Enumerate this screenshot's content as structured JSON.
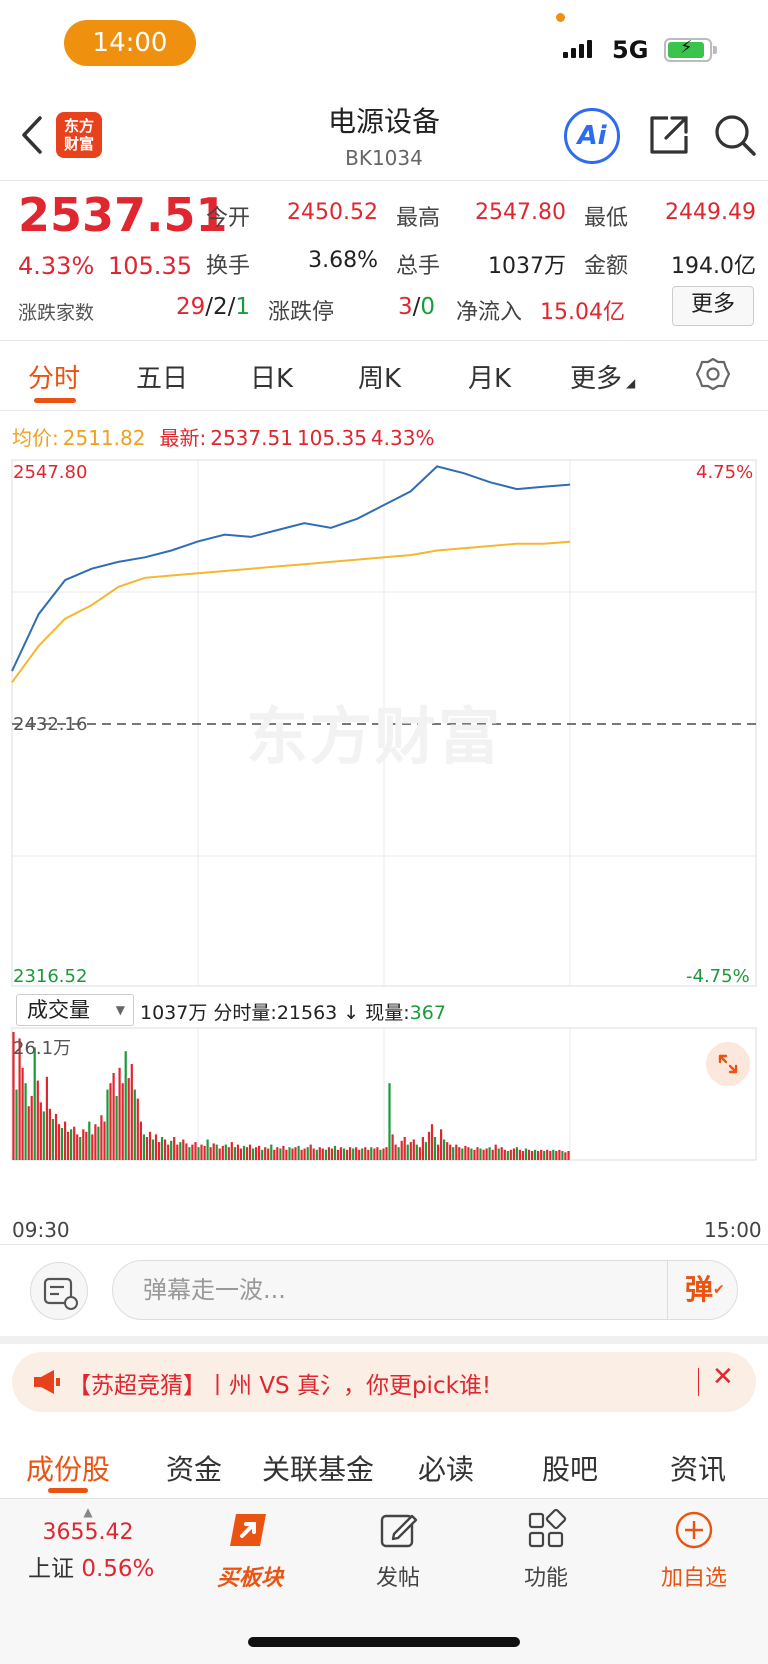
{
  "status_bar": {
    "time": "14:00",
    "network": "5G"
  },
  "header": {
    "title": "电源设备",
    "code": "BK1034",
    "logo_text": "东方财富",
    "ai_label": "Ai"
  },
  "quote": {
    "price": "2537.51",
    "change_pct": "4.33%",
    "change": "105.35",
    "open_label": "今开",
    "open": "2450.52",
    "high_label": "最高",
    "high": "2547.80",
    "low_label": "最低",
    "low": "2449.49",
    "turnover_label": "换手",
    "turnover": "3.68%",
    "volume_label": "总手",
    "volume": "1037万",
    "amount_label": "金额",
    "amount": "194.0亿",
    "adv_dec_label": "涨跌家数",
    "adv": "29",
    "flat": "2",
    "dec": "1",
    "limit_label": "涨跌停",
    "limit_up": "3",
    "limit_down": "0",
    "net_inflow_label": "净流入",
    "net_inflow": "15.04亿",
    "more_label": "更多"
  },
  "chart_tabs": [
    "分时",
    "五日",
    "日K",
    "周K",
    "月K",
    "更多"
  ],
  "info_row": {
    "avg_label": "均价:",
    "avg": "2511.82",
    "latest_label": "最新:",
    "latest": "2537.51",
    "latest_change": "105.35",
    "latest_pct": "4.33%"
  },
  "chart_data": {
    "type": "line",
    "y_max": "2547.80",
    "y_mid": "2432.16",
    "y_min": "2316.52",
    "pct_max": "4.75%",
    "pct_min": "-4.75%",
    "x_start": "09:30",
    "x_end": "15:00",
    "ylim": [
      2316.52,
      2547.8
    ],
    "price": [
      2455,
      2480,
      2495,
      2500,
      2503,
      2505,
      2508,
      2512,
      2515,
      2514,
      2517,
      2520,
      2518,
      2522,
      2528,
      2534,
      2545,
      2542,
      2538,
      2535,
      2536,
      2537
    ],
    "avg": [
      2450,
      2466,
      2478,
      2484,
      2492,
      2496,
      2497,
      2498,
      2499,
      2500,
      2501,
      2502,
      2503,
      2504,
      2505,
      2506,
      2508,
      2509,
      2510,
      2511,
      2511,
      2511.82
    ]
  },
  "volume": {
    "selector": "成交量",
    "total": "1037万",
    "minute_label": "分时量:",
    "minute_value": "21563",
    "current_label": "现量:",
    "current_value": "367",
    "max_label": "26.1万",
    "bars": [
      1.0,
      0.55,
      0.95,
      0.72,
      0.6,
      0.42,
      0.5,
      0.88,
      0.62,
      0.45,
      0.38,
      0.65,
      0.4,
      0.32,
      0.36,
      0.28,
      0.25,
      0.3,
      0.22,
      0.24,
      0.26,
      0.2,
      0.18,
      0.24,
      0.22,
      0.3,
      0.2,
      0.28,
      0.26,
      0.35,
      0.3,
      0.55,
      0.6,
      0.68,
      0.5,
      0.72,
      0.6,
      0.85,
      0.64,
      0.75,
      0.55,
      0.48,
      0.3,
      0.2,
      0.18,
      0.22,
      0.16,
      0.2,
      0.14,
      0.18,
      0.16,
      0.12,
      0.15,
      0.18,
      0.12,
      0.14,
      0.16,
      0.13,
      0.1,
      0.12,
      0.14,
      0.1,
      0.12,
      0.11,
      0.16,
      0.1,
      0.13,
      0.12,
      0.09,
      0.11,
      0.12,
      0.1,
      0.14,
      0.1,
      0.12,
      0.09,
      0.11,
      0.1,
      0.12,
      0.09,
      0.1,
      0.11,
      0.08,
      0.1,
      0.09,
      0.12,
      0.08,
      0.1,
      0.09,
      0.11,
      0.08,
      0.1,
      0.09,
      0.1,
      0.11,
      0.08,
      0.09,
      0.1,
      0.12,
      0.09,
      0.08,
      0.1,
      0.09,
      0.08,
      0.1,
      0.09,
      0.11,
      0.08,
      0.1,
      0.09,
      0.08,
      0.1,
      0.09,
      0.1,
      0.08,
      0.09,
      0.1,
      0.08,
      0.1,
      0.09,
      0.1,
      0.08,
      0.09,
      0.1,
      0.6,
      0.2,
      0.12,
      0.1,
      0.15,
      0.18,
      0.12,
      0.14,
      0.16,
      0.12,
      0.1,
      0.18,
      0.14,
      0.22,
      0.28,
      0.18,
      0.12,
      0.24,
      0.16,
      0.14,
      0.12,
      0.1,
      0.12,
      0.1,
      0.09,
      0.11,
      0.1,
      0.09,
      0.08,
      0.1,
      0.09,
      0.08,
      0.09,
      0.1,
      0.08,
      0.12,
      0.09,
      0.1,
      0.08,
      0.07,
      0.08,
      0.09,
      0.1,
      0.08,
      0.07,
      0.09,
      0.08,
      0.07,
      0.08,
      0.07,
      0.08,
      0.07,
      0.08,
      0.07,
      0.08,
      0.07,
      0.08,
      0.07,
      0.06,
      0.07
    ]
  },
  "comment": {
    "placeholder": "弹幕走一波...",
    "danmu_label": "弹"
  },
  "banner": {
    "text": "【苏超竞猜】丨州 VS 真氵，你更pick谁!"
  },
  "bottom_tabs": [
    "成份股",
    "资金",
    "关联基金",
    "必读",
    "股吧",
    "资讯"
  ],
  "nav": {
    "index_value": "3655.42",
    "index_name": "上证",
    "index_pct": "0.56%",
    "buy_label": "买板块",
    "post_label": "发帖",
    "func_label": "功能",
    "watch_label": "加自选"
  },
  "colors": {
    "red": "#e0262f",
    "green": "#1a9b3a",
    "accent": "#ea5413",
    "price_line": "#2f6db5",
    "avg_line": "#f5b730"
  }
}
